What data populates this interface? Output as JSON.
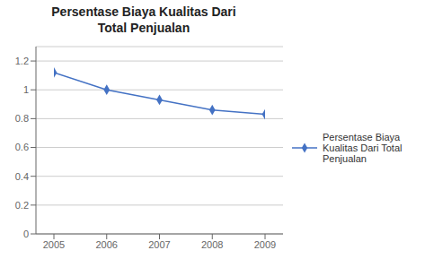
{
  "chart_data": {
    "type": "line",
    "title": "Persentase Biaya Kualitas Dari\nTotal Penjualan",
    "x": [
      2005,
      2006,
      2007,
      2008,
      2009
    ],
    "series": [
      {
        "name": "Persentase Biaya\nKualitas Dari Total\nPenjualan",
        "color": "#4472c4",
        "marker": "diamond",
        "values": [
          1.12,
          1.0,
          0.93,
          0.86,
          0.83
        ]
      }
    ],
    "xlim": [
      2005,
      2009
    ],
    "xticks": [
      2005,
      2006,
      2007,
      2008,
      2009
    ],
    "ylim": [
      0,
      1.3
    ],
    "yticks": [
      0,
      0.2,
      0.4,
      0.6,
      0.8,
      1.0,
      1.2
    ],
    "grid": true,
    "legend": "right"
  }
}
